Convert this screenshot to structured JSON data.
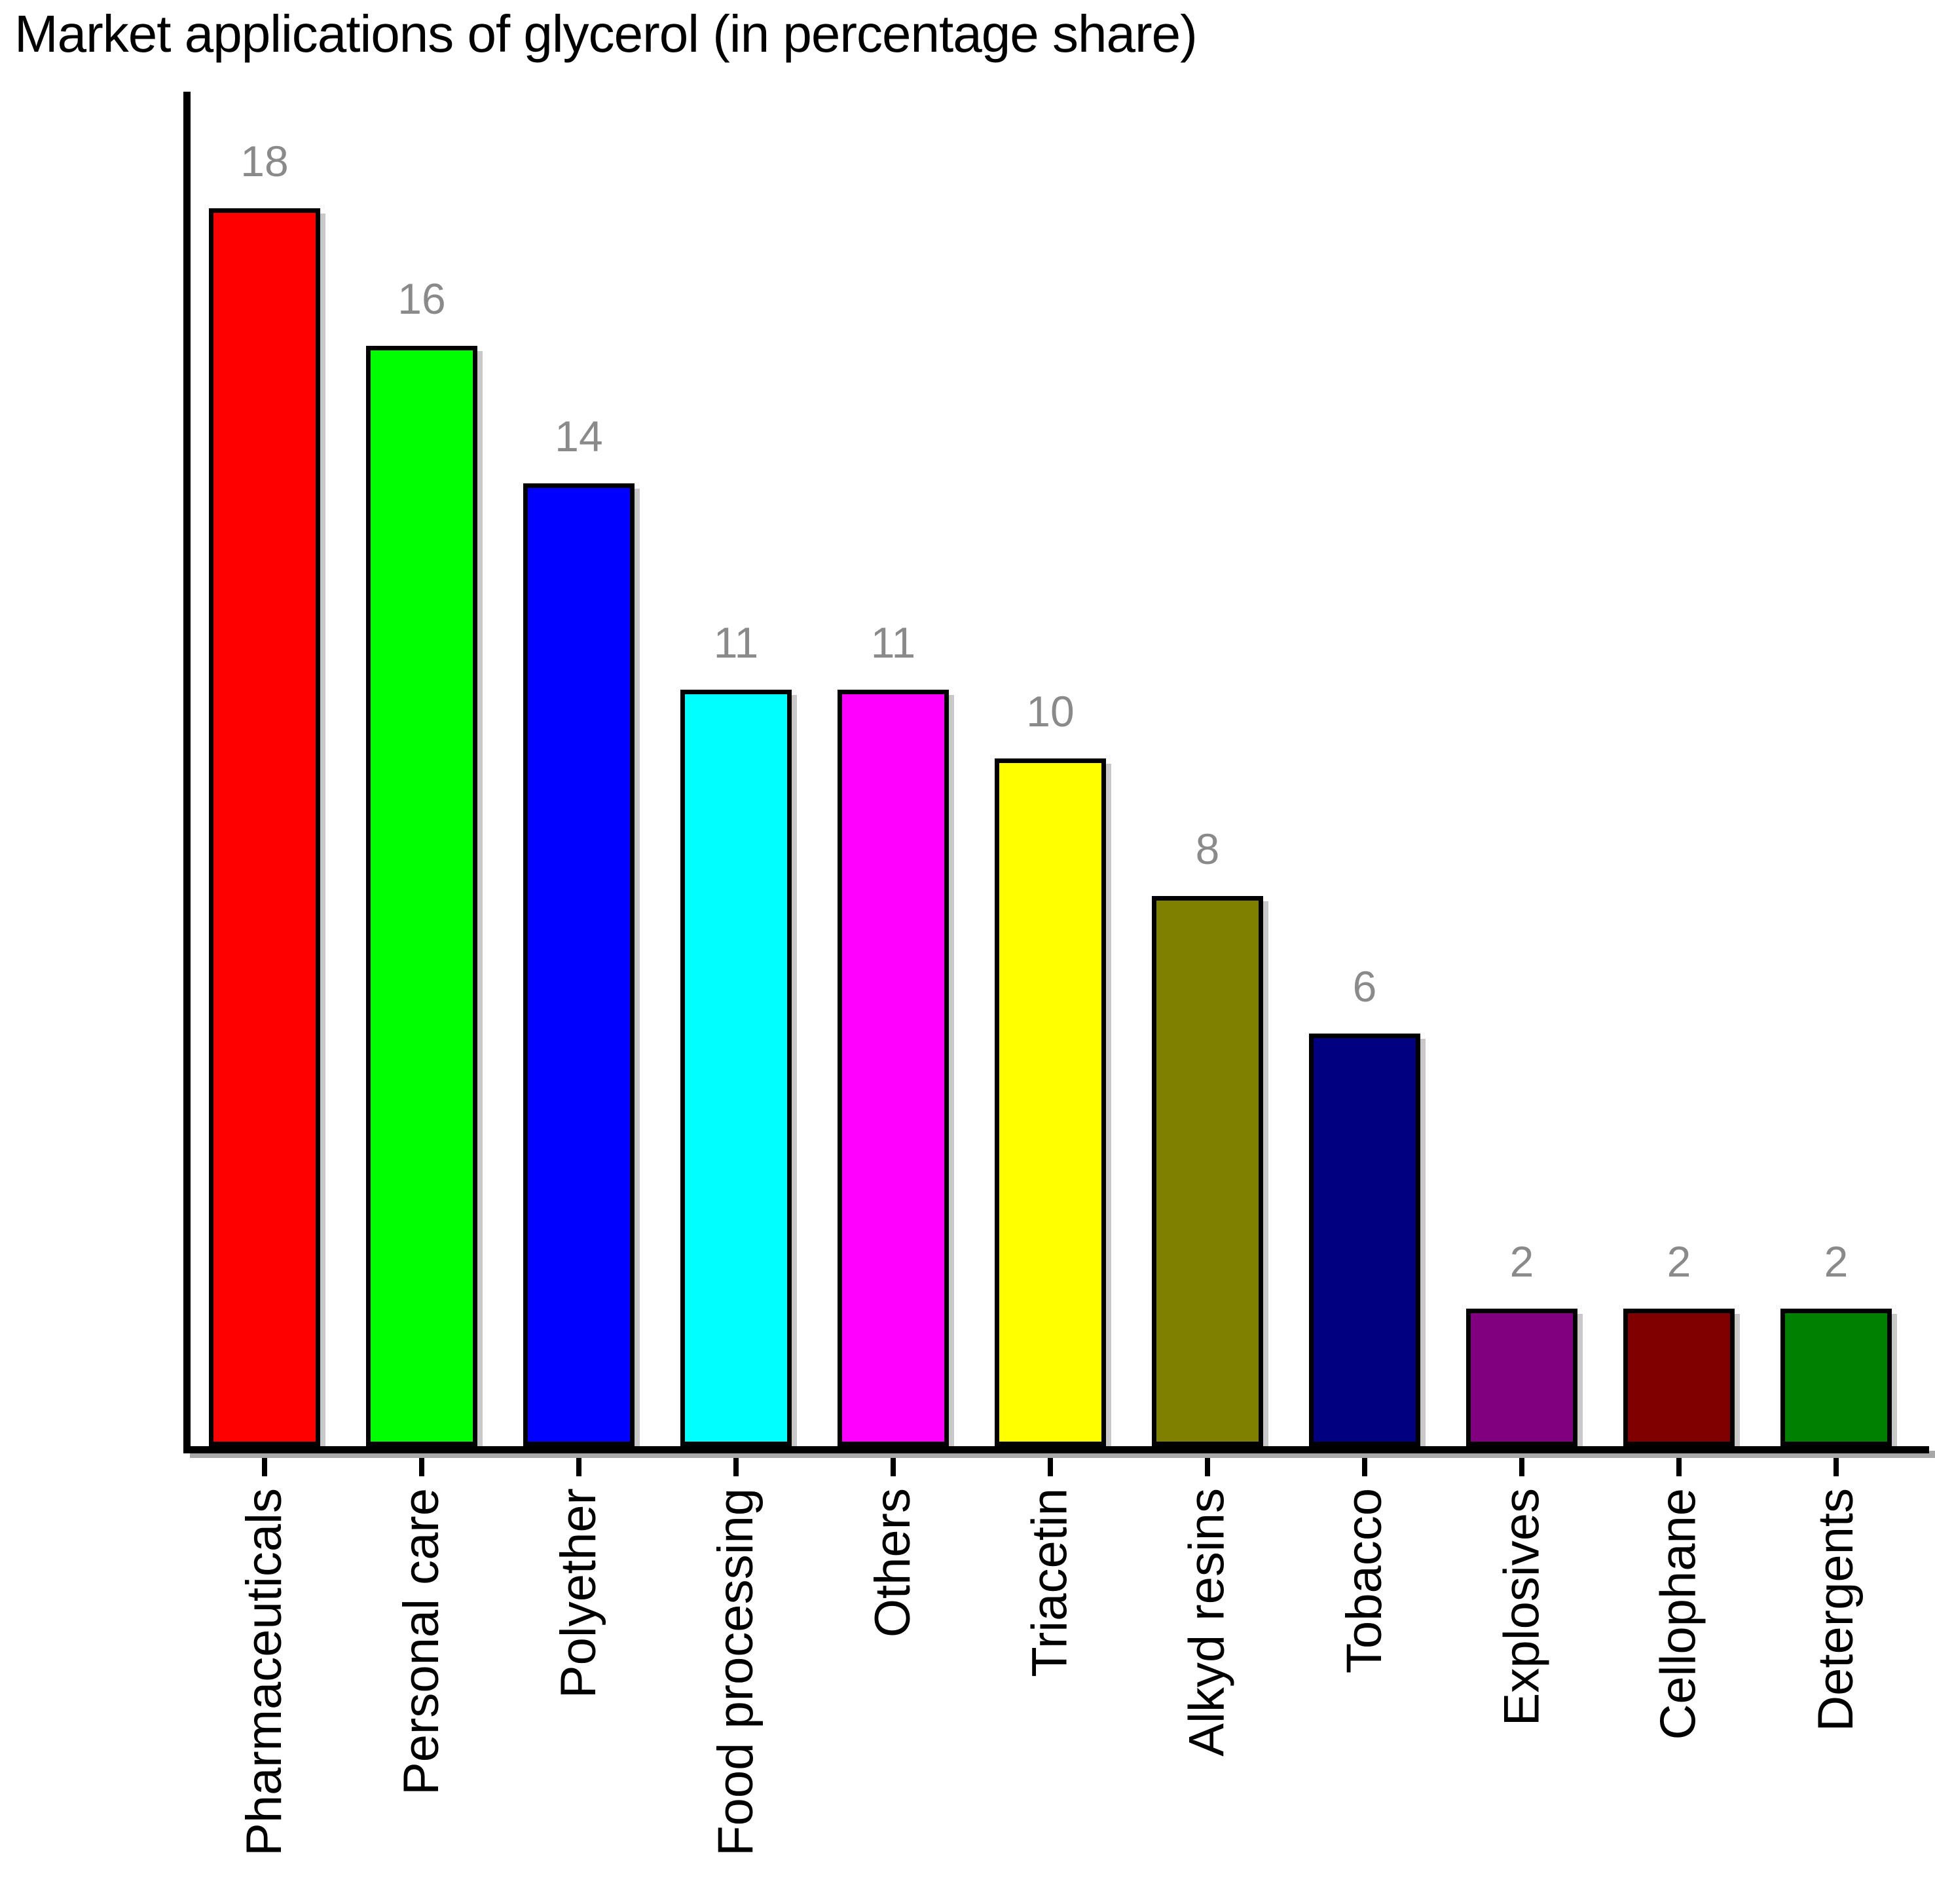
{
  "title": "Market applications of glycerol (in percentage share)",
  "chart_data": {
    "type": "bar",
    "title": "Market applications of glycerol (in percentage share)",
    "categories": [
      "Pharmaceuticals",
      "Personal care",
      "Polyether",
      "Food processing",
      "Others",
      "Triacetin",
      "Alkyd resins",
      "Tobacco",
      "Explosives",
      "Cellophane",
      "Detergents"
    ],
    "values": [
      18,
      16,
      14,
      11,
      11,
      10,
      8,
      6,
      2,
      2,
      2
    ],
    "bar_colors": [
      "#ff0000",
      "#00ff00",
      "#0000ff",
      "#00ffff",
      "#ff00ff",
      "#ffff00",
      "#808000",
      "#000080",
      "#800080",
      "#800000",
      "#008000"
    ],
    "bar_border_color": "#000000",
    "value_label_color": "#8a8a8a",
    "axis_color": "#000000",
    "shadow_color": "#c8c8c8",
    "background_color": "#ffffff",
    "xlabel": "",
    "ylabel": "",
    "ylim": [
      0,
      20
    ],
    "grid": false,
    "legend": "none",
    "value_labels_shown": true,
    "x_tick_label_rotation_degrees": 90
  }
}
